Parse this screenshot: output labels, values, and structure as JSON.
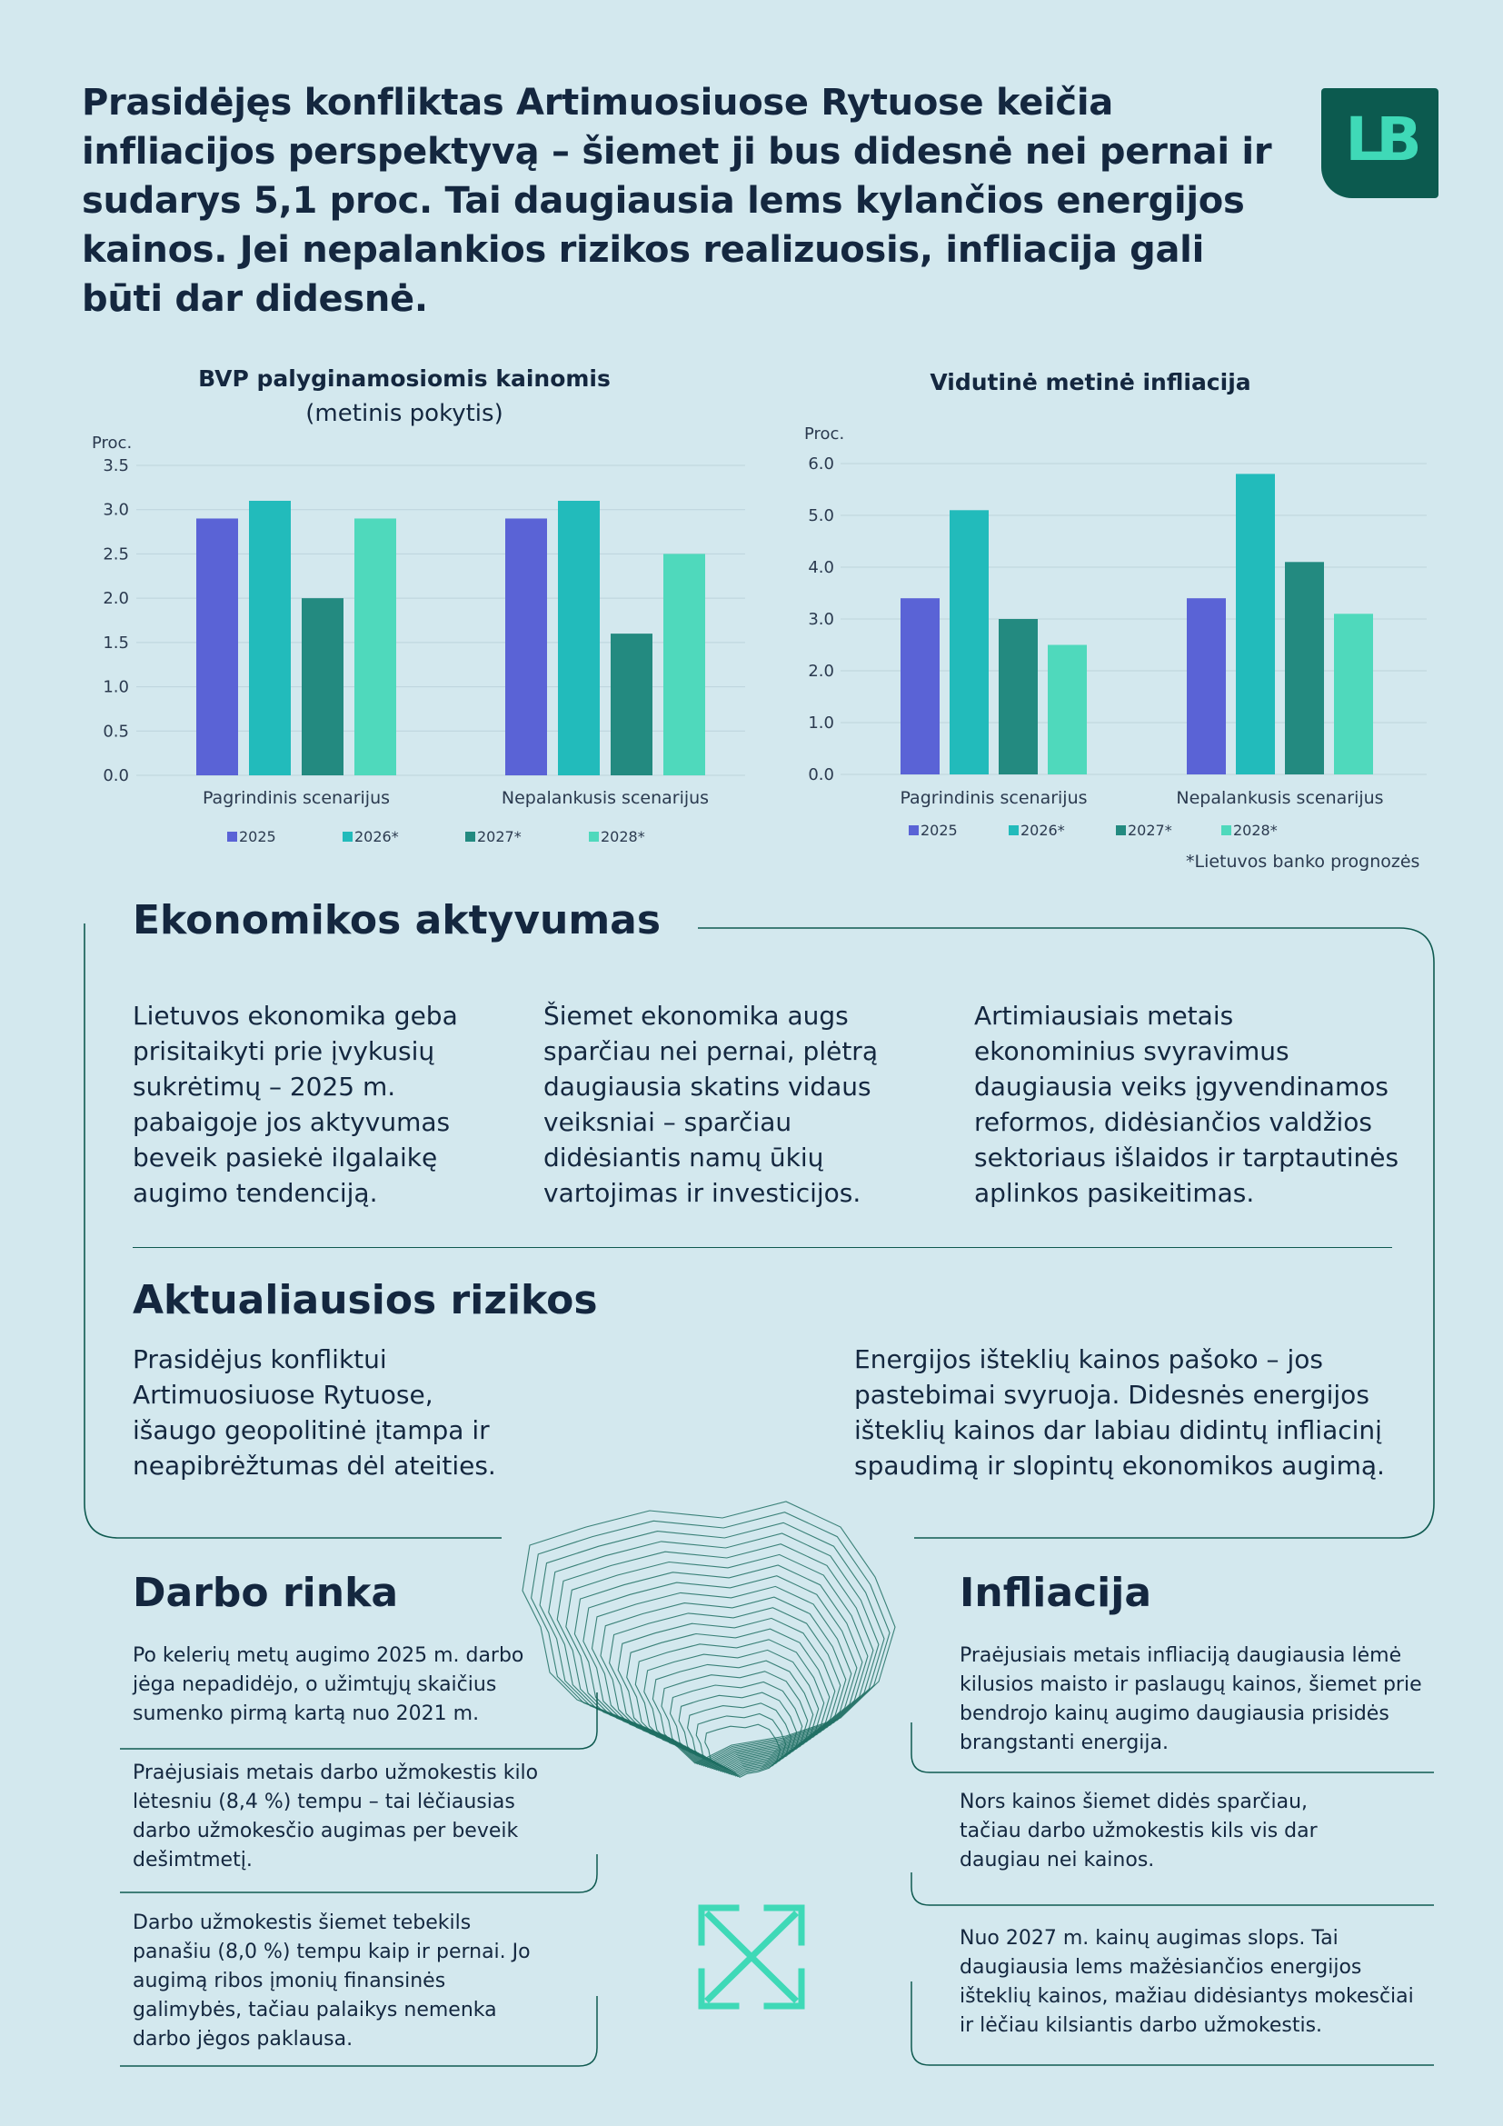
{
  "headline": "Prasidėjęs konfliktas Artimuosiuose Rytuose keičia infliacijos perspektyvą – šiemet ji bus didesnė nei pernai ir sudarys 5,1 proc. Tai daugiausia lems kylančios energijos kainos. Jei nepalankios rizikos realizuosis, infliacija gali būti dar didesnė.",
  "logo": {
    "text": "LB",
    "color": "#0c5a4f",
    "accent": "#3fd9b7"
  },
  "colors": {
    "2025": "#5a63d6",
    "2026": "#22bbbb",
    "2027": "#238a80",
    "2028": "#4fd9bc"
  },
  "chart_data": [
    {
      "type": "bar",
      "title": "BVP palyginamosiomis kainomis",
      "subtitle": "(metinis pokytis)",
      "ylabel": "Proc.",
      "ylim": [
        0,
        3.5
      ],
      "yticks": [
        "0.0",
        "0.5",
        "1.0",
        "1.5",
        "2.0",
        "2.5",
        "3.0",
        "3.5"
      ],
      "categories": [
        "Pagrindinis scenarijus",
        "Nepalankusis scenarijus"
      ],
      "series": [
        {
          "name": "2025",
          "values": [
            2.9,
            2.9
          ]
        },
        {
          "name": "2026*",
          "values": [
            3.1,
            3.1
          ]
        },
        {
          "name": "2027*",
          "values": [
            2.0,
            1.6
          ]
        },
        {
          "name": "2028*",
          "values": [
            2.9,
            2.5
          ]
        }
      ],
      "legend": "bottom",
      "grid": true
    },
    {
      "type": "bar",
      "title": "Vidutinė metinė infliacija",
      "ylabel": "Proc.",
      "ylim": [
        0,
        6
      ],
      "yticks": [
        "0.0",
        "1.0",
        "2.0",
        "3.0",
        "4.0",
        "5.0",
        "6.0"
      ],
      "categories": [
        "Pagrindinis scenarijus",
        "Nepalankusis scenarijus"
      ],
      "series": [
        {
          "name": "2025",
          "values": [
            3.4,
            3.4
          ]
        },
        {
          "name": "2026*",
          "values": [
            5.1,
            5.8
          ]
        },
        {
          "name": "2027*",
          "values": [
            3.0,
            4.1
          ]
        },
        {
          "name": "2028*",
          "values": [
            2.5,
            3.1
          ]
        }
      ],
      "legend": "bottom",
      "grid": true,
      "footnote": "*Lietuvos banko prognozės"
    }
  ],
  "economy": {
    "title": "Ekonomikos aktyvumas",
    "columns": [
      "Lietuvos ekonomika geba prisitaikyti prie įvykusių sukrėtimų – 2025 m. pabaigoje jos aktyvumas beveik pasiekė ilgalaikę augimo tendenciją.",
      "Šiemet ekonomika augs sparčiau nei pernai, plėtrą daugiausia skatins vidaus veiksniai – sparčiau didėsiantis namų ūkių vartojimas ir investicijos.",
      "Artimiausiais metais ekonominius svyravimus daugiausia veiks įgyvendinamos reformos, didėsiančios valdžios sektoriaus išlaidos ir tarptautinės aplinkos pasikeitimas."
    ]
  },
  "risks": {
    "title": "Aktualiausios rizikos",
    "left": "Prasidėjus konfliktui Artimuosiuose Rytuose, išaugo geopolitinė įtampa ir neapibrėžtumas dėl ateities.",
    "right": "Energijos išteklių kainos pašoko – jos pastebimai svyruoja. Didesnės energijos išteklių kainos dar labiau didintų infliacinį spaudimą ir slopintų ekonomikos augimą."
  },
  "labour": {
    "title": "Darbo rinka",
    "items": [
      "Po kelerių metų augimo 2025 m. darbo jėga nepadidėjo, o užimtųjų skaičius sumenko pirmą kartą nuo 2021 m.",
      "Praėjusiais metais darbo užmokestis kilo lėtesniu (8,4 %) tempu – tai lėčiausias darbo užmokesčio augimas per beveik dešimtmetį.",
      "Darbo užmokestis šiemet tebekils panašiu (8,0 %) tempu kaip ir pernai. Jo augimą ribos įmonių finansinės galimybės, tačiau palaikys nemenka darbo jėgos paklausa."
    ]
  },
  "inflation": {
    "title": "Infliacija",
    "items": [
      "Praėjusiais metais infliaciją daugiausia lėmė kilusios maisto ir paslaugų kainos, šiemet prie bendrojo kainų augimo daugiausia prisidės brangstanti energija.",
      "Nors kainos šiemet didės sparčiau, tačiau darbo užmokestis kils vis dar daugiau nei kainos.",
      "Nuo 2027 m. kainų augimas slops. Tai daugiausia lems mažėsiančios energijos išteklių kainos, mažiau didėsiantys mokesčiai ir lėčiau kilsiantis darbo užmokestis."
    ]
  },
  "icons": {
    "map": "lithuania-contour-map-icon",
    "expand": "expand-arrows-icon"
  }
}
